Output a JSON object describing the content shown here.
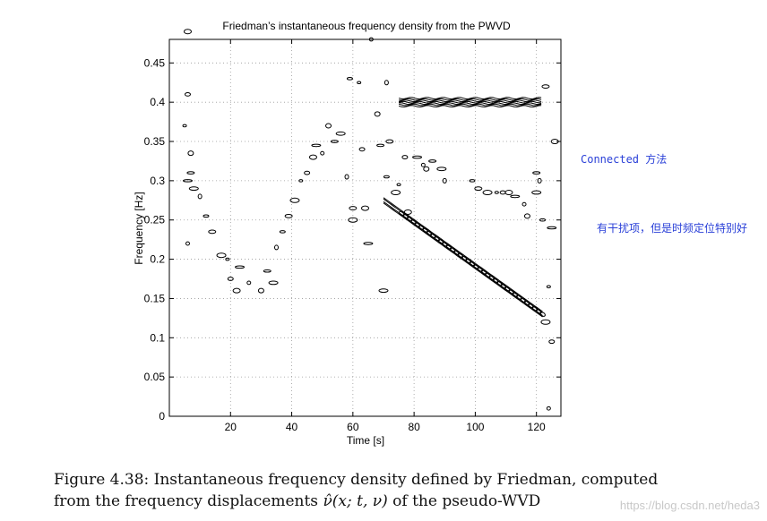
{
  "chart_data": {
    "type": "contour",
    "title": "Friedman’s instantaneous frequency density from the PWVD",
    "xlabel": "Time [s]",
    "ylabel": "Frequency [Hz]",
    "xlim": [
      0,
      128
    ],
    "ylim": [
      0,
      0.48
    ],
    "xticks": [
      20,
      40,
      60,
      80,
      100,
      120
    ],
    "yticks": [
      0,
      0.05,
      0.1,
      0.15,
      0.2,
      0.25,
      0.3,
      0.35,
      0.4,
      0.45
    ],
    "ytick_labels": [
      "0",
      "0.05",
      "0.1",
      "0.15",
      "0.2",
      "0.25",
      "0.3",
      "0.35",
      "0.4",
      "0.45"
    ],
    "grid": true,
    "components": [
      {
        "kind": "constant-tone",
        "t_start": 75,
        "t_end": 122,
        "freq": 0.4
      },
      {
        "kind": "linear-chirp",
        "t_start": 70,
        "t_end": 122,
        "freq_start": 0.275,
        "freq_end": 0.13
      },
      {
        "kind": "scattered-interference",
        "points": [
          [
            5,
            0.37
          ],
          [
            6,
            0.41
          ],
          [
            6,
            0.49
          ],
          [
            6,
            0.3
          ],
          [
            6,
            0.22
          ],
          [
            7,
            0.335
          ],
          [
            7,
            0.31
          ],
          [
            8,
            0.29
          ],
          [
            10,
            0.28
          ],
          [
            12,
            0.255
          ],
          [
            14,
            0.235
          ],
          [
            17,
            0.205
          ],
          [
            19,
            0.2
          ],
          [
            20,
            0.175
          ],
          [
            22,
            0.16
          ],
          [
            23,
            0.19
          ],
          [
            26,
            0.17
          ],
          [
            30,
            0.16
          ],
          [
            32,
            0.185
          ],
          [
            34,
            0.17
          ],
          [
            35,
            0.215
          ],
          [
            37,
            0.235
          ],
          [
            39,
            0.255
          ],
          [
            41,
            0.275
          ],
          [
            43,
            0.3
          ],
          [
            45,
            0.31
          ],
          [
            47,
            0.33
          ],
          [
            48,
            0.345
          ],
          [
            50,
            0.335
          ],
          [
            52,
            0.37
          ],
          [
            54,
            0.35
          ],
          [
            56,
            0.36
          ],
          [
            58,
            0.305
          ],
          [
            59,
            0.43
          ],
          [
            60,
            0.265
          ],
          [
            60,
            0.25
          ],
          [
            62,
            0.425
          ],
          [
            63,
            0.34
          ],
          [
            64,
            0.265
          ],
          [
            65,
            0.22
          ],
          [
            66,
            0.48
          ],
          [
            68,
            0.385
          ],
          [
            69,
            0.345
          ],
          [
            70,
            0.16
          ],
          [
            71,
            0.425
          ],
          [
            71,
            0.305
          ],
          [
            72,
            0.35
          ],
          [
            74,
            0.285
          ],
          [
            75,
            0.295
          ],
          [
            77,
            0.33
          ],
          [
            78,
            0.26
          ],
          [
            81,
            0.33
          ],
          [
            83,
            0.32
          ],
          [
            84,
            0.315
          ],
          [
            86,
            0.325
          ],
          [
            89,
            0.315
          ],
          [
            90,
            0.3
          ],
          [
            99,
            0.3
          ],
          [
            101,
            0.29
          ],
          [
            104,
            0.285
          ],
          [
            107,
            0.285
          ],
          [
            109,
            0.285
          ],
          [
            111,
            0.285
          ],
          [
            113,
            0.28
          ],
          [
            116,
            0.27
          ],
          [
            117,
            0.255
          ],
          [
            120,
            0.31
          ],
          [
            120,
            0.285
          ],
          [
            121,
            0.3
          ],
          [
            122,
            0.25
          ],
          [
            123,
            0.42
          ],
          [
            123,
            0.12
          ],
          [
            124,
            0.165
          ],
          [
            125,
            0.095
          ],
          [
            126,
            0.35
          ],
          [
            125,
            0.24
          ],
          [
            124,
            0.01
          ]
        ]
      }
    ]
  },
  "notes": {
    "connected": "Connected 方法",
    "interference": "有干扰项，但是时频定位特别好"
  },
  "caption": {
    "line1": "Figure 4.38: Instantaneous frequency density defined by Friedman, computed",
    "line2_prefix": "from the frequency displacements ",
    "line2_math": "ν̂(x; t, ν)",
    "line2_suffix": " of the pseudo-WVD"
  },
  "watermark": "https://blog.csdn.net/heda3"
}
